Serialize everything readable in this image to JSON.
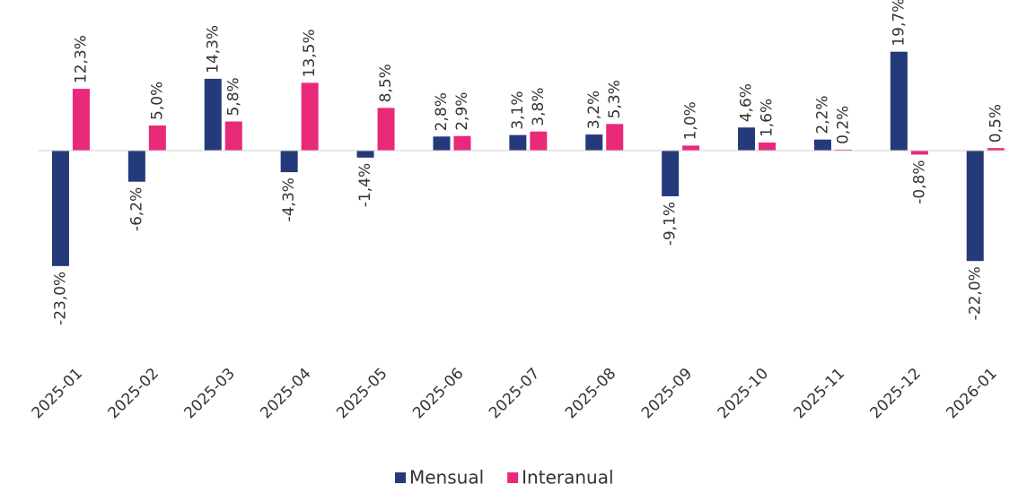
{
  "chart_data": {
    "type": "bar",
    "categories": [
      "2025-01",
      "2025-02",
      "2025-03",
      "2025-04",
      "2025-05",
      "2025-06",
      "2025-07",
      "2025-08",
      "2025-09",
      "2025-10",
      "2025-11",
      "2025-12",
      "2026-01"
    ],
    "series": [
      {
        "name": "Mensual",
        "color": "#253a7a",
        "values": [
          -23.0,
          -6.2,
          14.3,
          -4.3,
          -1.4,
          2.8,
          3.1,
          3.2,
          -9.1,
          4.6,
          2.2,
          19.7,
          -22.0
        ],
        "value_labels": [
          "-23,0%",
          "-6,2%",
          "14,3%",
          "-4,3%",
          "-1,4%",
          "2,8%",
          "3,1%",
          "3,2%",
          "-9,1%",
          "4,6%",
          "2,2%",
          "19,7%",
          "-22,0%"
        ]
      },
      {
        "name": "Interanual",
        "color": "#e8297a",
        "values": [
          12.3,
          5.0,
          5.8,
          13.5,
          8.5,
          2.9,
          3.8,
          5.3,
          1.0,
          1.6,
          0.2,
          -0.8,
          0.5
        ],
        "value_labels": [
          "12,3%",
          "5,0%",
          "5,8%",
          "13,5%",
          "8,5%",
          "2,9%",
          "3,8%",
          "5,3%",
          "1,0%",
          "1,6%",
          "0,2%",
          "-0,8%",
          "0,5%"
        ]
      }
    ],
    "ylim": [
      -30,
      30
    ],
    "legend": "bottom"
  }
}
